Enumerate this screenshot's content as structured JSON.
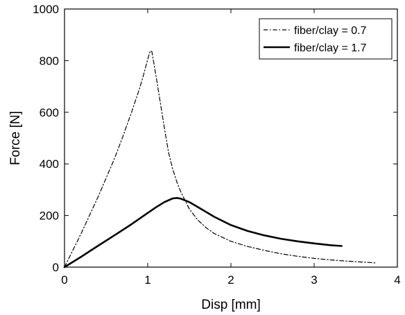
{
  "chart_data": {
    "type": "line",
    "title": "",
    "xlabel": "Disp [mm]",
    "ylabel": "Force [N]",
    "xlim": [
      0,
      4
    ],
    "ylim": [
      0,
      1000
    ],
    "xticks": [
      0,
      1,
      2,
      3,
      4
    ],
    "yticks": [
      0,
      200,
      400,
      600,
      800,
      1000
    ],
    "grid": false,
    "legend_position": "top-right",
    "series": [
      {
        "name": "fiber/clay = 0.7",
        "line_style": "dash-dot",
        "color": "#000000",
        "x": [
          0,
          0.1,
          0.2,
          0.3,
          0.4,
          0.5,
          0.6,
          0.7,
          0.8,
          0.9,
          0.95,
          1.0,
          1.03,
          1.05,
          1.1,
          1.15,
          1.2,
          1.25,
          1.3,
          1.35,
          1.4,
          1.5,
          1.6,
          1.7,
          1.8,
          2.0,
          2.2,
          2.4,
          2.6,
          2.8,
          3.0,
          3.2,
          3.4,
          3.6,
          3.75
        ],
        "y": [
          0,
          65,
          130,
          200,
          270,
          345,
          420,
          505,
          595,
          690,
          745,
          805,
          838,
          835,
          740,
          640,
          540,
          445,
          380,
          330,
          290,
          225,
          183,
          153,
          130,
          100,
          80,
          65,
          52,
          42,
          34,
          28,
          23,
          19,
          16
        ]
      },
      {
        "name": "fiber/clay = 1.7",
        "line_style": "solid",
        "color": "#000000",
        "x": [
          0,
          0.2,
          0.4,
          0.6,
          0.8,
          1.0,
          1.1,
          1.2,
          1.3,
          1.35,
          1.4,
          1.5,
          1.6,
          1.8,
          2.0,
          2.2,
          2.4,
          2.6,
          2.8,
          3.0,
          3.2,
          3.33
        ],
        "y": [
          0,
          40,
          82,
          123,
          165,
          210,
          232,
          252,
          266,
          268,
          265,
          252,
          233,
          195,
          163,
          140,
          123,
          110,
          100,
          92,
          85,
          82
        ]
      }
    ]
  }
}
